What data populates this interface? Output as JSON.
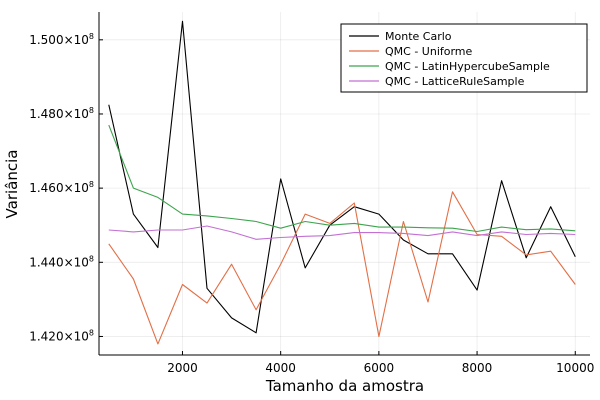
{
  "chart_data": {
    "type": "line",
    "xlabel": "Tamanho da amostra",
    "ylabel": "Variância",
    "xlim": [
      300,
      10300
    ],
    "ylim": [
      141500000.0,
      150750000.0
    ],
    "grid": true,
    "legend_position": "top-right",
    "x_ticks": [
      2000,
      4000,
      6000,
      8000,
      10000
    ],
    "x_tick_labels": [
      "2000",
      "4000",
      "6000",
      "8000",
      "10000"
    ],
    "y_ticks": [
      142000000.0,
      144000000.0,
      146000000.0,
      148000000.0,
      150000000.0
    ],
    "y_tick_mantissas": [
      "1.420",
      "1.440",
      "1.460",
      "1.480",
      "1.500"
    ],
    "y_tick_times": "×10",
    "y_tick_exponent": "8",
    "x": [
      500,
      1000,
      1500,
      2000,
      2500,
      3000,
      3500,
      4000,
      4500,
      5000,
      5500,
      6000,
      6500,
      7000,
      7500,
      8000,
      8500,
      9000,
      9500,
      10000
    ],
    "series": [
      {
        "name": "Monte Carlo",
        "color": "#000000",
        "values": [
          148250000.0,
          145300000.0,
          144400000.0,
          150500000.0,
          143300000.0,
          142500000.0,
          142100000.0,
          146250000.0,
          143850000.0,
          145000000.0,
          145500000.0,
          145300000.0,
          144600000.0,
          144230000.0,
          144230000.0,
          143250000.0,
          146200000.0,
          144120000.0,
          145500000.0,
          144150000.0
        ]
      },
      {
        "name": "QMC - Uniforme",
        "color": "#e26f46",
        "values": [
          144500000.0,
          143550000.0,
          141800000.0,
          143400000.0,
          142900000.0,
          143950000.0,
          142720000.0,
          143950000.0,
          145300000.0,
          145050000.0,
          145600000.0,
          142000000.0,
          145100000.0,
          142930000.0,
          145900000.0,
          144750000.0,
          144700000.0,
          144200000.0,
          144300000.0,
          143400000.0
        ]
      },
      {
        "name": "QMC - LatinHypercubeSample",
        "color": "#3da44d",
        "values": [
          147700000.0,
          146000000.0,
          145750000.0,
          145300000.0,
          145250000.0,
          145180000.0,
          145100000.0,
          144920000.0,
          145100000.0,
          145000000.0,
          145050000.0,
          144950000.0,
          144950000.0,
          144930000.0,
          144920000.0,
          144830000.0,
          144950000.0,
          144880000.0,
          144900000.0,
          144850000.0
        ]
      },
      {
        "name": "QMC - LatticeRuleSample",
        "color": "#c271d2",
        "values": [
          144870000.0,
          144820000.0,
          144870000.0,
          144870000.0,
          144980000.0,
          144820000.0,
          144620000.0,
          144670000.0,
          144700000.0,
          144720000.0,
          144800000.0,
          144800000.0,
          144780000.0,
          144720000.0,
          144820000.0,
          144720000.0,
          144820000.0,
          144750000.0,
          144780000.0,
          144750000.0
        ]
      }
    ]
  }
}
